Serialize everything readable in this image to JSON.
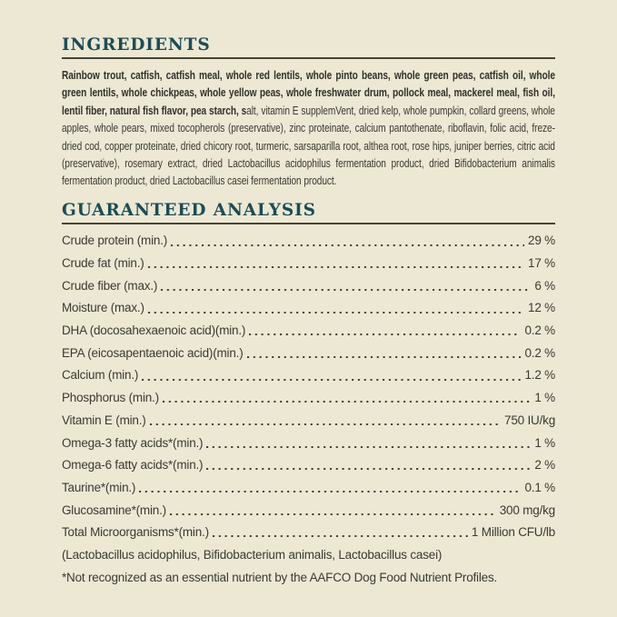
{
  "theme": {
    "background": "#ece8d4",
    "text": "#3b3a31",
    "bold_text": "#32312a",
    "heading": "#1d4c55",
    "rule": "#474434"
  },
  "ingredients": {
    "heading": "INGREDIENTS",
    "bold_text": "Rainbow trout, catfish, catfish meal, whole red lentils, whole pinto beans, whole green peas, catfish oil, whole green lentils, whole chickpeas, whole yellow peas, whole freshwater drum, pollock meal, mackerel meal, fish oil, lentil fiber, natural fish flavor, pea starch, s",
    "regular_text": "alt, vitamin E supplemVent, dried kelp, whole pumpkin, collard greens, whole apples, whole pears, mixed tocopherols (preservative), zinc proteinate, calcium pantothenate, riboflavin, folic acid, freze-dried cod, copper proteinate, dried chicory root, turmeric, sarsaparilla root, althea root, rose hips, juniper berries, citric acid (preservative), rosemary extract, dried Lactobacillus acidophilus fermentation product, dried Bifidobacterium animalis fermentation product, dried Lactobacillus casei fermentation product."
  },
  "guaranteed_analysis": {
    "heading": "GUARANTEED ANALYSIS",
    "rows": [
      {
        "label": "Crude protein (min.)",
        "value": "29 %"
      },
      {
        "label": "Crude fat (min.)",
        "value": "17 %"
      },
      {
        "label": "Crude fiber (max.)",
        "value": "6 %"
      },
      {
        "label": "Moisture (max.)",
        "value": "12 %"
      },
      {
        "label": "DHA (docosahexaenoic acid)(min.)",
        "value": "0.2 %"
      },
      {
        "label": "EPA (eicosapentaenoic acid)(min.)",
        "value": "0.2 %"
      },
      {
        "label": "Calcium (min.)",
        "value": "1.2 %"
      },
      {
        "label": "Phosphorus (min.)",
        "value": "1 %"
      },
      {
        "label": "Vitamin E (min.)",
        "value": "750 IU/kg"
      },
      {
        "label": "Omega-3 fatty acids*(min.)",
        "value": "1 %"
      },
      {
        "label": "Omega-6 fatty acids*(min.)",
        "value": "2 %"
      },
      {
        "label": "Taurine*(min.)",
        "value": "0.1 %"
      },
      {
        "label": "Glucosamine*(min.)",
        "value": "300 mg/kg"
      },
      {
        "label": "Total Microorganisms*(min.)",
        "value": "1 Million CFU/lb"
      }
    ],
    "microorganisms_detail": "(Lactobacillus acidophilus, Bifidobacterium animalis, Lactobacillus casei)",
    "footnote": "*Not recognized as an essential nutrient by the AAFCO Dog Food Nutrient Profiles."
  }
}
